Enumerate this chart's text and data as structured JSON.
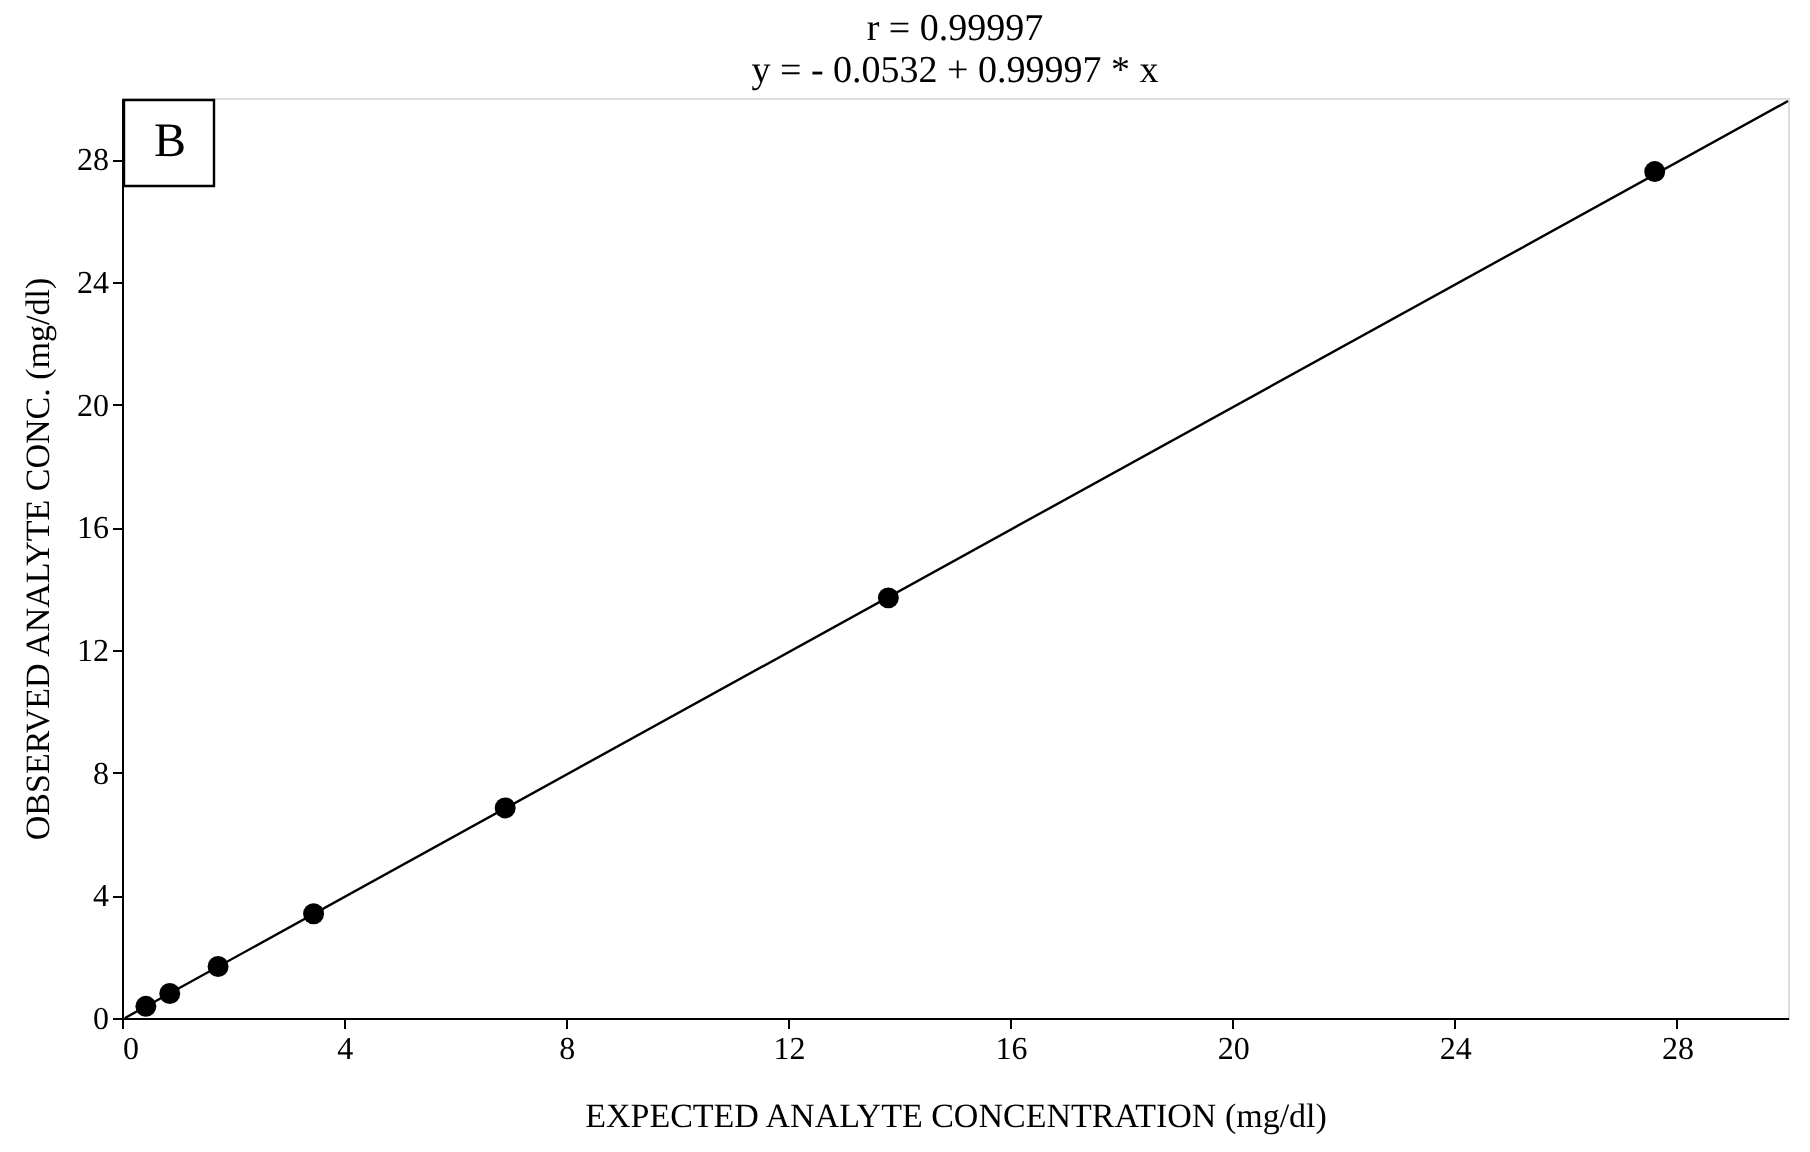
{
  "chart_data": {
    "type": "scatter",
    "title": [
      "r = 0.99997",
      "y = - 0.0532 + 0.99997 * x"
    ],
    "xlabel": "EXPECTED ANALYTE CONCENTRATION (mg/dl)",
    "ylabel": "OBSERVED ANALYTE CONC.  (mg/dl)",
    "annotations": [
      "B"
    ],
    "xlim": [
      0,
      30
    ],
    "ylim": [
      0,
      30
    ],
    "xticks": [
      0,
      4,
      8,
      12,
      16,
      20,
      24,
      28
    ],
    "yticks": [
      0,
      4,
      8,
      12,
      16,
      20,
      24,
      28
    ],
    "grid": false,
    "series": [
      {
        "color": "#000000",
        "marker": "circle",
        "x": [
          0.43,
          0.86,
          1.73,
          3.45,
          6.9,
          13.8,
          27.6
        ],
        "values": [
          0.38,
          0.8,
          1.68,
          3.4,
          6.85,
          13.7,
          27.6
        ]
      },
      {
        "type": "line",
        "color": "#000000",
        "x": [
          0.0532,
          30
        ],
        "values": [
          0,
          29.9
        ],
        "line_style": "solid",
        "marker": "none"
      }
    ]
  }
}
